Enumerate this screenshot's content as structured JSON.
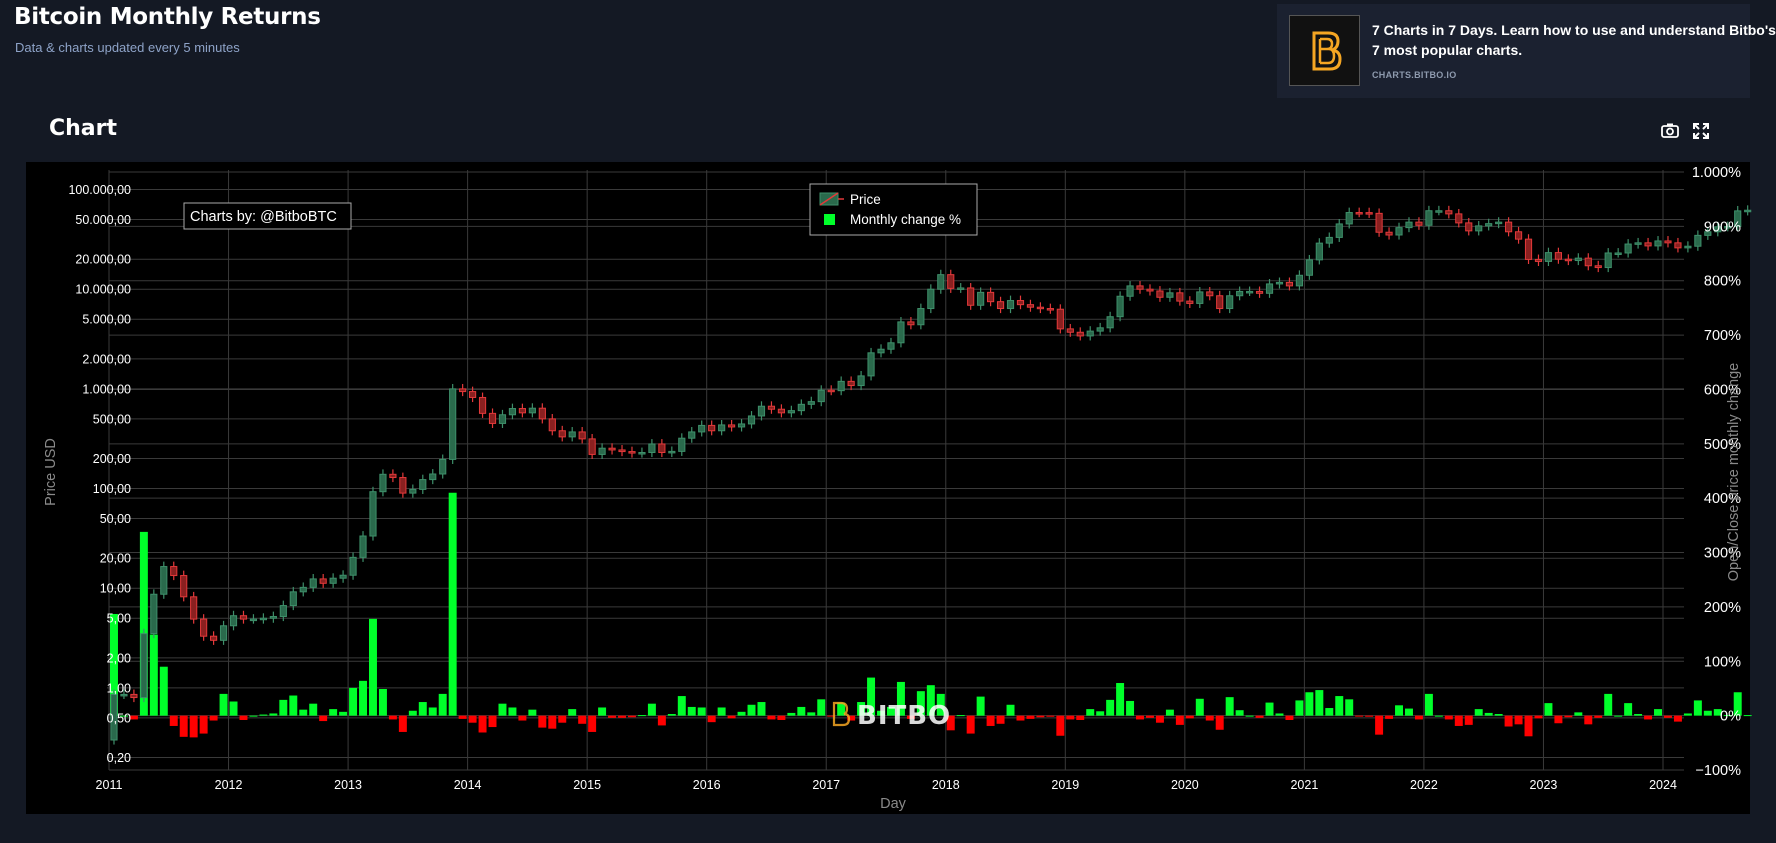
{
  "header": {
    "title": "Bitcoin Monthly Returns",
    "subtitle": "Data & charts updated every 5 minutes"
  },
  "promo": {
    "text_line1": "7 Charts in 7 Days. Learn how to use and understand Bitbo's",
    "text_line2": "7 most popular charts.",
    "link": "CHARTS.BITBO.IO",
    "logo_icon": "bitbo-logo-icon"
  },
  "chart_panel": {
    "heading": "Chart",
    "toolbar": {
      "screenshot_icon": "camera-icon",
      "fullscreen_icon": "expand-icon"
    }
  },
  "chart_data": {
    "type": "candlestick+bar",
    "watermark": "BITBO",
    "annotation": "Charts by: @BitboBTC",
    "xlabel": "Day",
    "ylabel_left": "Price USD",
    "ylabel_right": "Open/Close price monthly change",
    "x_ticks": [
      "2011",
      "2012",
      "2013",
      "2014",
      "2015",
      "2016",
      "2017",
      "2018",
      "2019",
      "2020",
      "2021",
      "2022",
      "2023",
      "2024"
    ],
    "y_left": {
      "scale": "log",
      "ticks": [
        100000,
        50000,
        20000,
        10000,
        5000,
        2000,
        1000,
        500,
        200,
        100,
        50,
        20,
        10,
        5,
        2,
        1,
        0.5,
        0.2
      ],
      "tick_labels": [
        "100.000,00",
        "50.000,00",
        "20.000,00",
        "10.000,00",
        "5.000,00",
        "2.000,00",
        "1.000,00",
        "500,00",
        "200,00",
        "100,00",
        "50,00",
        "20,00",
        "10,00",
        "5,00",
        "2,00",
        "1,00",
        "0,50",
        "0,20"
      ],
      "range": [
        0.15,
        150000
      ]
    },
    "y_right": {
      "ticks": [
        1000,
        900,
        800,
        700,
        600,
        500,
        400,
        300,
        200,
        100,
        0,
        -100
      ],
      "tick_labels": [
        "1.000%",
        "900%",
        "800%",
        "700%",
        "600%",
        "500%",
        "400%",
        "300%",
        "200%",
        "100%",
        "0%",
        "−100%"
      ],
      "range": [
        -100,
        1000
      ]
    },
    "legend": {
      "placement": "top-center",
      "items": [
        "Price",
        "Monthly change %"
      ]
    },
    "colors": {
      "up": "#3e8f6a",
      "down": "#e3393a",
      "bar_up": "#00ff2a",
      "bar_down": "#ff0000",
      "grid": "#3a3a3a"
    },
    "series": [
      {
        "name": "Price",
        "type": "candlestick",
        "start": "2011-01",
        "open": [
          0.3,
          0.86,
          0.86,
          0.8,
          3.5,
          8.7,
          16.5,
          13.4,
          8.2,
          4.9,
          3.3,
          3.0,
          4.2,
          5.3,
          4.9,
          4.9,
          5.0,
          5.2,
          6.7,
          9.2,
          10.2,
          12.4,
          11.2,
          12.6,
          13.5,
          20.4,
          33.4,
          93.0,
          139,
          129,
          90,
          98,
          123,
          140,
          196,
          1000,
          940,
          820,
          568,
          450,
          550,
          635,
          575,
          640,
          500,
          380,
          330,
          370,
          315,
          220,
          254,
          244,
          235,
          227,
          230,
          280,
          230,
          236,
          320,
          370,
          430,
          380,
          435,
          415,
          445,
          535,
          670,
          625,
          575,
          605,
          700,
          745,
          970,
          960,
          1190,
          1080,
          1350,
          2300,
          2500,
          2900,
          4700,
          4400,
          6400,
          10000,
          14000,
          10200,
          10300,
          6900,
          9300,
          7500,
          6400,
          7700,
          7000,
          6600,
          6400,
          6300,
          4000,
          3700,
          3400,
          3800,
          4100,
          5300,
          8500,
          10800,
          10000,
          9600,
          8300,
          9200,
          7600,
          7200,
          9400,
          8600,
          6400,
          8600,
          9500,
          9500,
          9100,
          11300,
          11700,
          10800,
          13800,
          19700,
          29000,
          33100,
          45200,
          58800,
          58700,
          57700,
          37300,
          35000,
          41500,
          47100,
          43800,
          61300,
          61300,
          57000,
          46300,
          38500,
          43200,
          45500,
          47100,
          37700,
          31800,
          19900,
          19000,
          23300,
          20000,
          19400,
          20500,
          17200,
          16500,
          23100,
          23100,
          28400,
          29200,
          27200,
          30500,
          29200,
          26000,
          27000,
          34700,
          37700,
          42300,
          42600,
          61100
        ],
        "close": [
          0.86,
          0.86,
          0.8,
          3.5,
          8.7,
          16.5,
          13.4,
          8.2,
          4.9,
          3.3,
          3.0,
          4.2,
          5.3,
          4.9,
          4.9,
          5.0,
          5.2,
          6.7,
          9.2,
          10.2,
          12.4,
          11.2,
          12.6,
          13.5,
          20.4,
          33.4,
          93.0,
          139,
          129,
          90,
          98,
          123,
          140,
          196,
          1000,
          940,
          820,
          568,
          450,
          550,
          635,
          575,
          640,
          500,
          380,
          330,
          370,
          315,
          220,
          254,
          244,
          235,
          227,
          230,
          280,
          230,
          236,
          320,
          370,
          430,
          380,
          435,
          415,
          445,
          535,
          670,
          625,
          575,
          605,
          700,
          745,
          970,
          960,
          1190,
          1080,
          1350,
          2300,
          2500,
          2900,
          4700,
          4400,
          6400,
          10000,
          14000,
          10200,
          10300,
          6900,
          9300,
          7500,
          6400,
          7700,
          7000,
          6600,
          6400,
          6300,
          4000,
          3700,
          3400,
          3800,
          4100,
          5300,
          8500,
          10800,
          10000,
          9600,
          8300,
          9200,
          7600,
          7200,
          9400,
          8600,
          6400,
          8600,
          9500,
          9500,
          9100,
          11300,
          11700,
          10800,
          13800,
          19700,
          29000,
          33100,
          45200,
          58800,
          58700,
          57700,
          37300,
          35000,
          41500,
          47100,
          43800,
          61300,
          61300,
          57000,
          46300,
          38500,
          43200,
          45500,
          47100,
          37700,
          31800,
          19900,
          19000,
          23300,
          20000,
          19400,
          20500,
          17200,
          16500,
          23100,
          23100,
          28400,
          29200,
          27200,
          30500,
          29200,
          26000,
          27000,
          34700,
          37700,
          42300,
          42600,
          61100,
          62000
        ]
      },
      {
        "name": "Monthly change %",
        "type": "bar",
        "values": [
          187,
          0,
          -7,
          338,
          149,
          90,
          -19,
          -39,
          -40,
          -33,
          -9,
          40,
          26,
          -8,
          0,
          2,
          4,
          29,
          37,
          11,
          22,
          -10,
          12,
          7,
          51,
          64,
          178,
          49,
          -7,
          -30,
          9,
          25,
          15,
          40,
          410,
          -6,
          -13,
          -31,
          -21,
          22,
          15,
          -9,
          11,
          -22,
          -24,
          -13,
          12,
          -15,
          -30,
          15,
          -4,
          -4,
          -3,
          1,
          22,
          -18,
          3,
          36,
          16,
          15,
          -12,
          15,
          -5,
          7,
          20,
          25,
          -7,
          -8,
          5,
          16,
          6,
          30,
          -1,
          24,
          -9,
          25,
          70,
          9,
          16,
          62,
          -6,
          45,
          56,
          40,
          -27,
          1,
          -33,
          35,
          -19,
          -15,
          20,
          -9,
          -6,
          -3,
          -2,
          -37,
          -7,
          -8,
          12,
          8,
          29,
          60,
          27,
          -7,
          -4,
          -13,
          11,
          -17,
          -5,
          31,
          -9,
          -26,
          34,
          10,
          0,
          -4,
          24,
          4,
          -8,
          28,
          43,
          47,
          14,
          36,
          30,
          -1,
          -2,
          -35,
          -6,
          19,
          13,
          -7,
          40,
          0,
          -7,
          -19,
          -17,
          12,
          5,
          3,
          -20,
          -16,
          -38,
          -5,
          23,
          -14,
          -3,
          6,
          -16,
          -4,
          40,
          0,
          23,
          3,
          -7,
          12,
          -4,
          -11,
          4,
          28,
          9,
          12,
          1,
          43,
          1
        ]
      }
    ]
  }
}
